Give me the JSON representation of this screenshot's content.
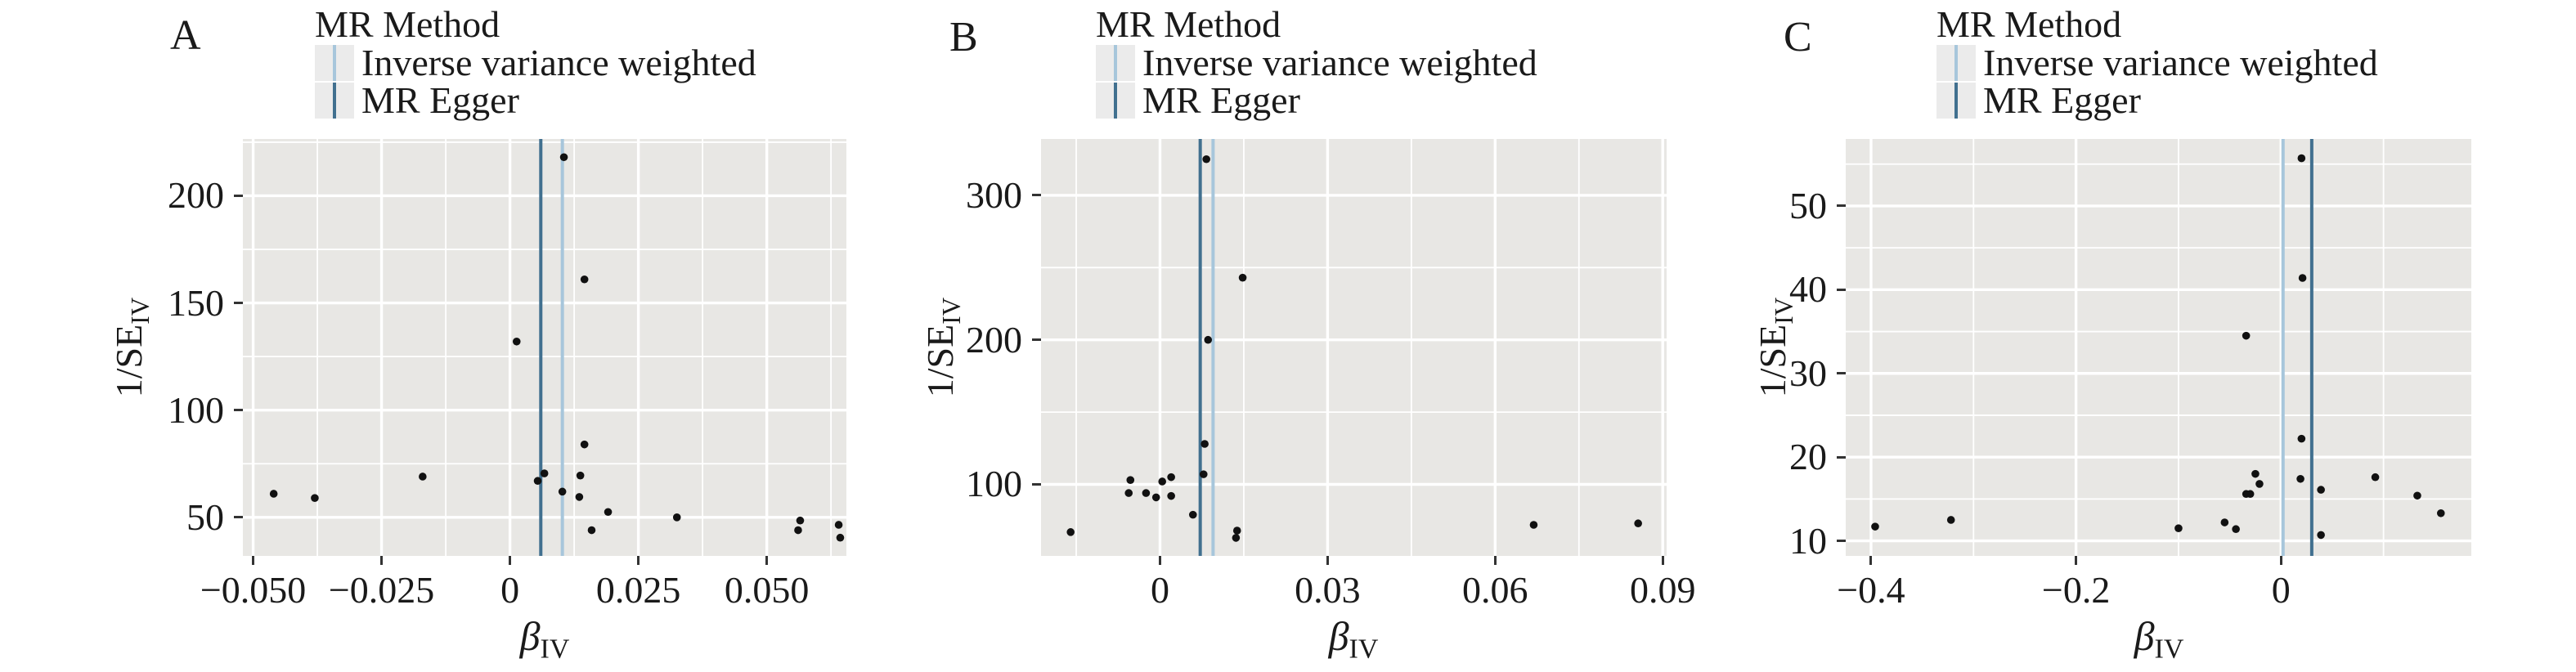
{
  "figure": {
    "legend_title": "MR Method",
    "legend_items": [
      "Inverse variance weighted",
      "MR Egger"
    ],
    "y_axis": {
      "main": "1/SE",
      "sub": "IV"
    },
    "x_axis": {
      "main": "β",
      "sub": "IV"
    }
  },
  "colors": {
    "ivw_line": "#a7c6db",
    "egger_line": "#41708f",
    "plot_bg": "#e8e7e4",
    "grid_major": "#ffffff",
    "grid_minor": "#f3f2f0",
    "point": "#111111",
    "tick": "#333333",
    "text": "#1a1a1a",
    "legend_key_bg": "#ebebeb"
  },
  "chart_data": [
    {
      "type": "scatter",
      "panel": "A",
      "xlabel": "β_IV",
      "ylabel": "1/SE_IV",
      "legend_title": "MR Method",
      "legend": [
        "Inverse variance weighted",
        "MR Egger"
      ],
      "xlim": [
        -0.052,
        0.0655
      ],
      "ylim": [
        32,
        226.5
      ],
      "xticks": [
        -0.05,
        -0.025,
        0,
        0.025,
        0.05
      ],
      "xtick_labels": [
        "−0.050",
        "−0.025",
        "0",
        "0.025",
        "0.050"
      ],
      "x_minor": [
        -0.0375,
        -0.0125,
        0.0125,
        0.0375,
        0.0625
      ],
      "yticks": [
        50,
        100,
        150,
        200
      ],
      "ytick_labels": [
        "50",
        "100",
        "150",
        "200"
      ],
      "y_minor": [
        75,
        125,
        175,
        225
      ],
      "grid": true,
      "legend_position": "top",
      "vlines": [
        {
          "method": "MR Egger",
          "x": 0.006,
          "color_key": "egger_line"
        },
        {
          "method": "Inverse variance weighted",
          "x": 0.0102,
          "color_key": "ivw_line"
        }
      ],
      "points": [
        [
          -0.046,
          61
        ],
        [
          -0.038,
          59
        ],
        [
          -0.017,
          69
        ],
        [
          0.0013,
          132
        ],
        [
          0.0105,
          218
        ],
        [
          0.0145,
          161
        ],
        [
          0.0067,
          70.5
        ],
        [
          0.0054,
          67
        ],
        [
          0.0102,
          62
        ],
        [
          0.0137,
          69.5
        ],
        [
          0.0135,
          59.5
        ],
        [
          0.0145,
          84
        ],
        [
          0.0191,
          52.5
        ],
        [
          0.0159,
          44
        ],
        [
          0.0325,
          50
        ],
        [
          0.0561,
          44
        ],
        [
          0.0565,
          48.5
        ],
        [
          0.064,
          46.5
        ],
        [
          0.0643,
          40.5
        ]
      ]
    },
    {
      "type": "scatter",
      "panel": "B",
      "xlabel": "β_IV",
      "ylabel": "1/SE_IV",
      "legend_title": "MR Method",
      "legend": [
        "Inverse variance weighted",
        "MR Egger"
      ],
      "xlim": [
        -0.0213,
        0.0907
      ],
      "ylim": [
        50.5,
        339
      ],
      "xticks": [
        0,
        0.03,
        0.06,
        0.09
      ],
      "xtick_labels": [
        "0",
        "0.03",
        "0.06",
        "0.09"
      ],
      "x_minor": [
        -0.015,
        0.015,
        0.045,
        0.075
      ],
      "yticks": [
        100,
        200,
        300
      ],
      "ytick_labels": [
        "100",
        "200",
        "300"
      ],
      "y_minor": [
        150,
        250
      ],
      "grid": true,
      "legend_position": "top",
      "vlines": [
        {
          "method": "MR Egger",
          "x": 0.0072,
          "color_key": "egger_line"
        },
        {
          "method": "Inverse variance weighted",
          "x": 0.0095,
          "color_key": "ivw_line"
        }
      ],
      "points": [
        [
          -0.016,
          67
        ],
        [
          -0.0053,
          103
        ],
        [
          -0.0056,
          94
        ],
        [
          -0.0025,
          94
        ],
        [
          -0.0007,
          91
        ],
        [
          0.0004,
          102
        ],
        [
          0.002,
          105
        ],
        [
          0.002,
          92
        ],
        [
          0.0059,
          79
        ],
        [
          0.008,
          128
        ],
        [
          0.0078,
          107
        ],
        [
          0.0083,
          325
        ],
        [
          0.0086,
          200
        ],
        [
          0.0148,
          243
        ],
        [
          0.0138,
          68
        ],
        [
          0.0136,
          63
        ],
        [
          0.0669,
          72
        ],
        [
          0.0856,
          73
        ]
      ]
    },
    {
      "type": "scatter",
      "panel": "C",
      "xlabel": "β_IV",
      "ylabel": "1/SE_IV",
      "legend_title": "MR Method",
      "legend": [
        "Inverse variance weighted",
        "MR Egger"
      ],
      "xlim": [
        -0.4247,
        0.1857
      ],
      "ylim": [
        8.2,
        58
      ],
      "xticks": [
        -0.4,
        -0.2,
        0
      ],
      "xtick_labels": [
        "−0.4",
        "−0.2",
        "0"
      ],
      "x_minor": [
        -0.3,
        -0.1,
        0.1
      ],
      "yticks": [
        10,
        20,
        30,
        40,
        50
      ],
      "ytick_labels": [
        "10",
        "20",
        "30",
        "40",
        "50"
      ],
      "y_minor": [
        15,
        25,
        35,
        45,
        55
      ],
      "grid": true,
      "legend_position": "top",
      "vlines": [
        {
          "method": "Inverse variance weighted",
          "x": 0.002,
          "color_key": "ivw_line"
        },
        {
          "method": "MR Egger",
          "x": 0.03,
          "color_key": "egger_line"
        }
      ],
      "points": [
        [
          -0.396,
          11.7
        ],
        [
          -0.322,
          12.5
        ],
        [
          -0.1,
          11.5
        ],
        [
          -0.055,
          12.2
        ],
        [
          -0.044,
          11.4
        ],
        [
          -0.034,
          34.5
        ],
        [
          -0.034,
          15.6
        ],
        [
          -0.03,
          15.6
        ],
        [
          -0.025,
          18.0
        ],
        [
          -0.021,
          16.8
        ],
        [
          0.02,
          55.7
        ],
        [
          0.021,
          41.4
        ],
        [
          0.02,
          22.2
        ],
        [
          0.019,
          17.4
        ],
        [
          0.039,
          16.1
        ],
        [
          0.039,
          10.7
        ],
        [
          0.092,
          17.6
        ],
        [
          0.133,
          15.4
        ],
        [
          0.156,
          13.3
        ]
      ]
    }
  ]
}
